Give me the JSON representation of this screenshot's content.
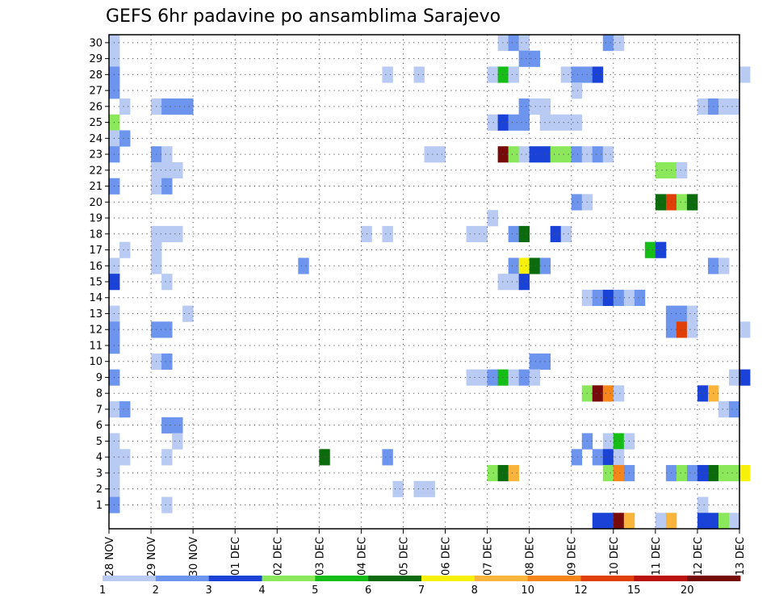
{
  "chart_data": {
    "type": "heatmap",
    "title": "GEFS 6hr padavine po ansamblima Sarajevo",
    "xlabel": "",
    "ylabel": "",
    "x_ticks": [
      "28 NOV",
      "29 NOV",
      "30 NOV",
      "01 DEC",
      "02 DEC",
      "03 DEC",
      "04 DEC",
      "05 DEC",
      "06 DEC",
      "07 DEC",
      "08 DEC",
      "09 DEC",
      "10 DEC",
      "11 DEC",
      "12 DEC",
      "13 DEC"
    ],
    "x_range_steps": [
      0,
      60
    ],
    "y_ticks": [
      1,
      2,
      3,
      4,
      5,
      6,
      7,
      8,
      9,
      10,
      11,
      12,
      13,
      14,
      15,
      16,
      17,
      18,
      19,
      20,
      21,
      22,
      23,
      24,
      25,
      26,
      27,
      28,
      29,
      30
    ],
    "y_range": [
      0,
      30
    ],
    "colorbar": {
      "labels": [
        "1",
        "2",
        "3",
        "4",
        "5",
        "6",
        "7",
        "8",
        "10",
        "12",
        "15",
        "20"
      ],
      "colors": [
        "#b9cbf3",
        "#6d95ee",
        "#1b42d6",
        "#8ae85a",
        "#17bd17",
        "#0c6b0c",
        "#f6f00a",
        "#f9b43c",
        "#f6861a",
        "#e04008",
        "#b9130c",
        "#770b09"
      ]
    },
    "series": [
      {
        "member": 30,
        "cells": [
          [
            0,
            1
          ],
          [
            37,
            1
          ],
          [
            38,
            2
          ],
          [
            39,
            1
          ],
          [
            47,
            2
          ],
          [
            48,
            1
          ]
        ]
      },
      {
        "member": 29,
        "cells": [
          [
            0,
            1
          ],
          [
            39,
            2
          ],
          [
            40,
            2
          ]
        ]
      },
      {
        "member": 28,
        "cells": [
          [
            0,
            2
          ],
          [
            26,
            1
          ],
          [
            29,
            1
          ],
          [
            36,
            1
          ],
          [
            37,
            5
          ],
          [
            38,
            1
          ],
          [
            43,
            1
          ],
          [
            44,
            2
          ],
          [
            45,
            2
          ],
          [
            46,
            3
          ],
          [
            60,
            1
          ]
        ]
      },
      {
        "member": 27,
        "cells": [
          [
            0,
            2
          ],
          [
            44,
            1
          ]
        ]
      },
      {
        "member": 26,
        "cells": [
          [
            1,
            1
          ],
          [
            4,
            1
          ],
          [
            5,
            2
          ],
          [
            6,
            2
          ],
          [
            7,
            2
          ],
          [
            39,
            2
          ],
          [
            40,
            1
          ],
          [
            41,
            1
          ],
          [
            56,
            1
          ],
          [
            57,
            2
          ],
          [
            58,
            1
          ],
          [
            59,
            1
          ]
        ]
      },
      {
        "member": 25,
        "cells": [
          [
            0,
            4
          ],
          [
            36,
            1
          ],
          [
            37,
            3
          ],
          [
            38,
            2
          ],
          [
            39,
            2
          ],
          [
            41,
            1
          ],
          [
            42,
            1
          ],
          [
            43,
            1
          ],
          [
            44,
            1
          ]
        ]
      },
      {
        "member": 24,
        "cells": [
          [
            0,
            1
          ],
          [
            1,
            2
          ]
        ]
      },
      {
        "member": 23,
        "cells": [
          [
            0,
            2
          ],
          [
            4,
            2
          ],
          [
            5,
            1
          ],
          [
            30,
            1
          ],
          [
            31,
            1
          ],
          [
            37,
            12
          ],
          [
            38,
            4
          ],
          [
            39,
            1
          ],
          [
            40,
            3
          ],
          [
            41,
            3
          ],
          [
            42,
            4
          ],
          [
            43,
            4
          ],
          [
            44,
            2
          ],
          [
            45,
            1
          ],
          [
            46,
            2
          ],
          [
            47,
            1
          ]
        ]
      },
      {
        "member": 22,
        "cells": [
          [
            4,
            1
          ],
          [
            5,
            1
          ],
          [
            6,
            1
          ],
          [
            52,
            4
          ],
          [
            53,
            4
          ],
          [
            54,
            1
          ]
        ]
      },
      {
        "member": 21,
        "cells": [
          [
            0,
            2
          ],
          [
            4,
            1
          ],
          [
            5,
            2
          ]
        ]
      },
      {
        "member": 20,
        "cells": [
          [
            44,
            2
          ],
          [
            45,
            1
          ],
          [
            52,
            6
          ],
          [
            53,
            10
          ],
          [
            54,
            4
          ],
          [
            55,
            6
          ]
        ]
      },
      {
        "member": 19,
        "cells": [
          [
            36,
            1
          ]
        ]
      },
      {
        "member": 18,
        "cells": [
          [
            4,
            1
          ],
          [
            5,
            1
          ],
          [
            6,
            1
          ],
          [
            24,
            1
          ],
          [
            26,
            1
          ],
          [
            34,
            1
          ],
          [
            35,
            1
          ],
          [
            38,
            2
          ],
          [
            39,
            6
          ],
          [
            42,
            3
          ],
          [
            43,
            1
          ]
        ]
      },
      {
        "member": 17,
        "cells": [
          [
            1,
            1
          ],
          [
            4,
            1
          ],
          [
            51,
            5
          ],
          [
            52,
            3
          ]
        ]
      },
      {
        "member": 16,
        "cells": [
          [
            0,
            1
          ],
          [
            4,
            1
          ],
          [
            18,
            2
          ],
          [
            38,
            2
          ],
          [
            39,
            7
          ],
          [
            40,
            6
          ],
          [
            41,
            2
          ],
          [
            57,
            2
          ],
          [
            58,
            1
          ]
        ]
      },
      {
        "member": 15,
        "cells": [
          [
            0,
            3
          ],
          [
            5,
            1
          ],
          [
            37,
            1
          ],
          [
            38,
            1
          ],
          [
            39,
            3
          ]
        ]
      },
      {
        "member": 14,
        "cells": [
          [
            45,
            1
          ],
          [
            46,
            2
          ],
          [
            47,
            3
          ],
          [
            48,
            2
          ],
          [
            49,
            1
          ],
          [
            50,
            2
          ]
        ]
      },
      {
        "member": 13,
        "cells": [
          [
            0,
            1
          ],
          [
            7,
            1
          ],
          [
            53,
            2
          ],
          [
            54,
            2
          ],
          [
            55,
            1
          ]
        ]
      },
      {
        "member": 12,
        "cells": [
          [
            0,
            2
          ],
          [
            4,
            2
          ],
          [
            5,
            2
          ],
          [
            53,
            2
          ],
          [
            54,
            10
          ],
          [
            55,
            1
          ],
          [
            60,
            1
          ]
        ]
      },
      {
        "member": 11,
        "cells": [
          [
            0,
            2
          ]
        ]
      },
      {
        "member": 10,
        "cells": [
          [
            4,
            1
          ],
          [
            5,
            2
          ],
          [
            40,
            2
          ],
          [
            41,
            2
          ]
        ]
      },
      {
        "member": 9,
        "cells": [
          [
            0,
            2
          ],
          [
            34,
            1
          ],
          [
            35,
            1
          ],
          [
            36,
            2
          ],
          [
            37,
            5
          ],
          [
            38,
            1
          ],
          [
            39,
            2
          ],
          [
            40,
            1
          ],
          [
            59,
            1
          ],
          [
            60,
            3
          ]
        ]
      },
      {
        "member": 8,
        "cells": [
          [
            45,
            4
          ],
          [
            46,
            12
          ],
          [
            47,
            9
          ],
          [
            48,
            1
          ],
          [
            56,
            3
          ],
          [
            57,
            8
          ]
        ]
      },
      {
        "member": 7,
        "cells": [
          [
            0,
            1
          ],
          [
            1,
            2
          ],
          [
            58,
            1
          ],
          [
            59,
            2
          ]
        ]
      },
      {
        "member": 6,
        "cells": [
          [
            5,
            2
          ],
          [
            6,
            2
          ]
        ]
      },
      {
        "member": 5,
        "cells": [
          [
            0,
            1
          ],
          [
            6,
            1
          ],
          [
            45,
            2
          ],
          [
            47,
            1
          ],
          [
            48,
            5
          ],
          [
            49,
            1
          ]
        ]
      },
      {
        "member": 4,
        "cells": [
          [
            0,
            1
          ],
          [
            1,
            1
          ],
          [
            5,
            1
          ],
          [
            20,
            6
          ],
          [
            26,
            2
          ],
          [
            44,
            2
          ],
          [
            46,
            2
          ],
          [
            47,
            3
          ],
          [
            48,
            1
          ]
        ]
      },
      {
        "member": 3,
        "cells": [
          [
            0,
            1
          ],
          [
            36,
            4
          ],
          [
            37,
            6
          ],
          [
            38,
            8
          ],
          [
            47,
            4
          ],
          [
            48,
            9
          ],
          [
            49,
            2
          ],
          [
            53,
            2
          ],
          [
            54,
            4
          ],
          [
            55,
            2
          ],
          [
            56,
            3
          ],
          [
            57,
            6
          ],
          [
            58,
            4
          ],
          [
            59,
            4
          ],
          [
            60,
            7
          ]
        ]
      },
      {
        "member": 2,
        "cells": [
          [
            0,
            1
          ],
          [
            27,
            1
          ],
          [
            29,
            1
          ],
          [
            30,
            1
          ]
        ]
      },
      {
        "member": 1,
        "cells": [
          [
            0,
            2
          ],
          [
            5,
            1
          ],
          [
            56,
            1
          ]
        ]
      },
      {
        "member": 0,
        "cells": [
          [
            46,
            3
          ],
          [
            47,
            3
          ],
          [
            48,
            12
          ],
          [
            49,
            8
          ],
          [
            52,
            1
          ],
          [
            53,
            8
          ],
          [
            56,
            3
          ],
          [
            57,
            3
          ],
          [
            58,
            4
          ],
          [
            59,
            1
          ]
        ]
      }
    ]
  }
}
